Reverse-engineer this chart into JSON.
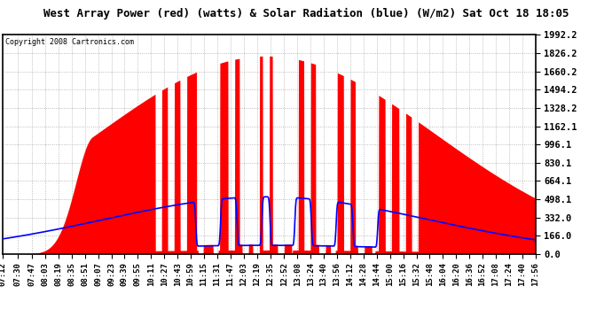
{
  "title": "West Array Power (red) (watts) & Solar Radiation (blue) (W/m2) Sat Oct 18 18:05",
  "copyright": "Copyright 2008 Cartronics.com",
  "fig_bg_color": "#FFFFFF",
  "plot_bg_color": "#FFFFFF",
  "grid_color": "#AAAAAA",
  "red_color": "#FF0000",
  "blue_color": "#0000FF",
  "yticks": [
    0.0,
    166.0,
    332.0,
    498.1,
    664.1,
    830.1,
    996.1,
    1162.1,
    1328.2,
    1494.2,
    1660.2,
    1826.2,
    1992.2
  ],
  "ymax": 1992.2,
  "xtick_labels": [
    "07:12",
    "07:30",
    "07:47",
    "08:03",
    "08:19",
    "08:35",
    "08:51",
    "09:07",
    "09:23",
    "09:39",
    "09:55",
    "10:11",
    "10:27",
    "10:43",
    "10:59",
    "11:15",
    "11:31",
    "11:47",
    "12:03",
    "12:19",
    "12:35",
    "12:52",
    "13:08",
    "13:24",
    "13:40",
    "13:56",
    "14:12",
    "14:28",
    "14:44",
    "15:00",
    "15:16",
    "15:32",
    "15:48",
    "16:04",
    "16:20",
    "16:36",
    "16:52",
    "17:08",
    "17:24",
    "17:40",
    "17:56"
  ]
}
